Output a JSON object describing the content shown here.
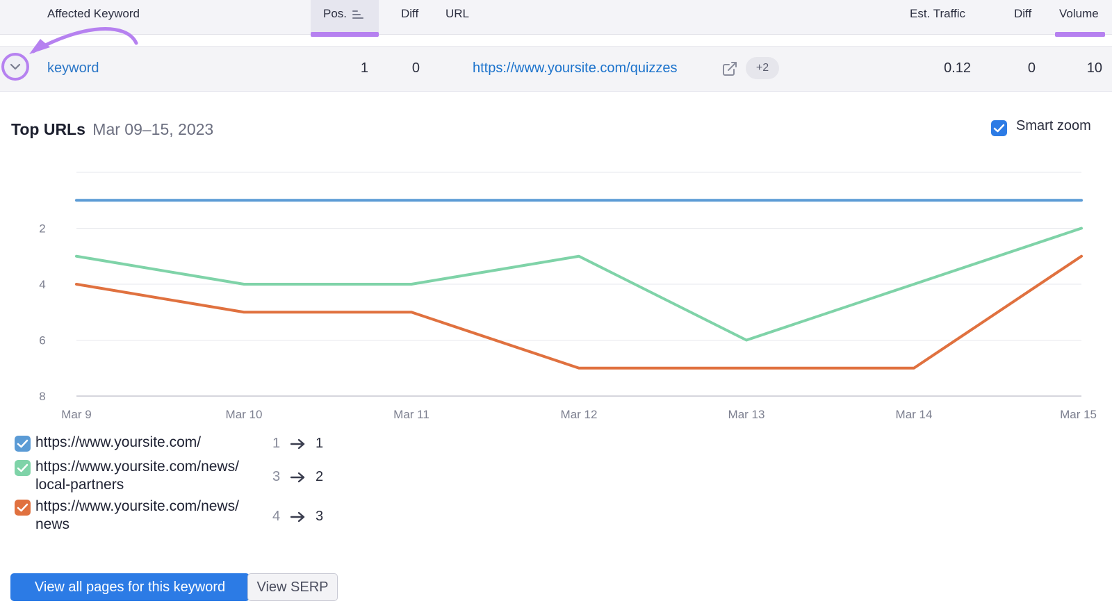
{
  "table": {
    "headers": {
      "keyword": "Affected Keyword",
      "pos": "Pos.",
      "diff": "Diff",
      "url": "URL",
      "traffic": "Est. Traffic",
      "traffic_diff": "Diff",
      "volume": "Volume"
    },
    "row": {
      "keyword": "keyword",
      "pos": "1",
      "diff": "0",
      "url": "https://www.yoursite.com/quizzes",
      "more_badge": "+2",
      "traffic": "0.12",
      "traffic_diff": "0",
      "volume": "10"
    },
    "icons": {
      "sort": "sort-lines-icon",
      "external": "external-link-icon",
      "expand": "chevron-down-icon"
    }
  },
  "chart_section": {
    "title": "Top URLs",
    "date_range": "Mar 09–15, 2023",
    "smart_zoom_label": "Smart zoom",
    "smart_zoom_checked": true
  },
  "chart_data": {
    "type": "line",
    "x": [
      "Mar 9",
      "Mar 10",
      "Mar 11",
      "Mar 12",
      "Mar 13",
      "Mar 14",
      "Mar 15"
    ],
    "y_ticks": [
      "2",
      "4",
      "6",
      "8"
    ],
    "ylim": [
      0,
      8
    ],
    "y_inverted": true,
    "grid": true,
    "series": [
      {
        "name": "https://www.yoursite.com/",
        "color": "#5b9bd5",
        "values": [
          1,
          1,
          1,
          1,
          1,
          1,
          1
        ]
      },
      {
        "name": "https://www.yoursite.com/news/local-partners",
        "color": "#7fd3a8",
        "values": [
          3,
          4,
          4,
          3,
          6,
          4,
          2
        ]
      },
      {
        "name": "https://www.yoursite.com/news/news",
        "color": "#e0713f",
        "values": [
          4,
          5,
          5,
          7,
          7,
          7,
          3
        ]
      }
    ]
  },
  "legend": [
    {
      "url_line1": "https://www.yoursite.com/",
      "url_line2": "",
      "from": "1",
      "to": "1",
      "color": "#5b9bd5"
    },
    {
      "url_line1": "https://www.yoursite.com/news/",
      "url_line2": "local-partners",
      "from": "3",
      "to": "2",
      "color": "#7fd3a8"
    },
    {
      "url_line1": "https://www.yoursite.com/news/",
      "url_line2": "news",
      "from": "4",
      "to": "3",
      "color": "#e0713f"
    }
  ],
  "buttons": {
    "view_all": "View all pages for this keyword",
    "view_serp": "View SERP"
  },
  "colors": {
    "accent": "#2c7be5",
    "highlight": "#b681f0",
    "link": "#1c73cc"
  }
}
